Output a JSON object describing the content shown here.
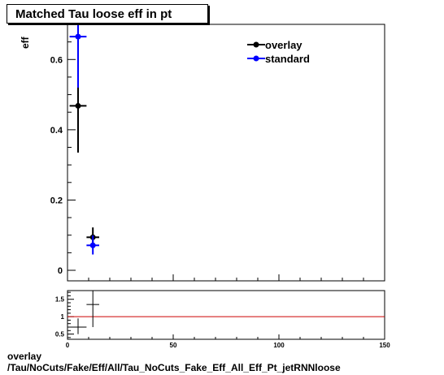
{
  "title": "Matched Tau loose eff in pt",
  "footer": {
    "line1": "overlay",
    "line2": "/Tau/NoCuts/Fake/Eff/All/Tau_NoCuts_Fake_Eff_All_Eff_Pt_jetRNNloose"
  },
  "colors": {
    "overlay": "#000000",
    "standard": "#0000ff",
    "ratio_line": "#cc0000"
  },
  "chart_data": [
    {
      "type": "scatter",
      "title": "Matched Tau loose eff in pt",
      "xlabel": "",
      "ylabel": "eff",
      "xlim": [
        0,
        150
      ],
      "ylim": [
        -0.03,
        0.7
      ],
      "yticks": [
        0,
        0.2,
        0.4,
        0.6
      ],
      "ytick_labels": [
        "0",
        "0.2",
        "0.4",
        "0.6"
      ],
      "legend": {
        "placement": "top-right",
        "entries": [
          "overlay",
          "standard"
        ]
      },
      "series": [
        {
          "name": "overlay",
          "color": "#000000",
          "points": [
            {
              "x": 5,
              "xerr": 4,
              "y": 0.468,
              "ylo": 0.335,
              "yhi": 0.7
            },
            {
              "x": 12,
              "xerr": 3,
              "y": 0.094,
              "ylo": 0.07,
              "yhi": 0.122
            }
          ]
        },
        {
          "name": "standard",
          "color": "#0000ff",
          "points": [
            {
              "x": 5,
              "xerr": 4,
              "y": 0.665,
              "ylo": 0.52,
              "yhi": 0.7
            },
            {
              "x": 12,
              "xerr": 3,
              "y": 0.071,
              "ylo": 0.045,
              "yhi": 0.099
            }
          ]
        }
      ]
    },
    {
      "type": "scatter",
      "xlabel": "",
      "ylabel": "",
      "xlim": [
        0,
        150
      ],
      "ylim": [
        0.35,
        1.75
      ],
      "xticks": [
        0,
        50,
        100,
        150
      ],
      "xtick_labels": [
        "0",
        "50",
        "100",
        "150"
      ],
      "yticks": [
        0.5,
        1,
        1.5
      ],
      "ytick_labels": [
        "0.5",
        "1",
        "1.5"
      ],
      "reference_line": 1,
      "series": [
        {
          "color": "#000000",
          "points": [
            {
              "x": 5,
              "xerr": 4,
              "y": 0.7,
              "ylo": 0.5,
              "yhi": 0.95
            },
            {
              "x": 12,
              "xerr": 3,
              "y": 1.35,
              "ylo": 0.7,
              "yhi": 1.75
            }
          ]
        }
      ]
    }
  ]
}
